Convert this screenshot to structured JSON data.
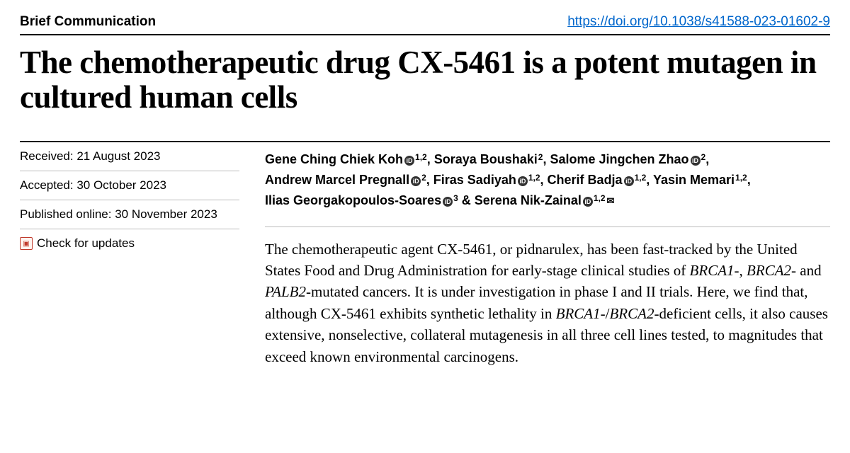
{
  "header": {
    "article_type": "Brief Communication",
    "doi_url": "https://doi.org/10.1038/s41588-023-01602-9"
  },
  "title": "The chemotherapeutic drug CX-5461 is a potent mutagen in cultured human cells",
  "meta": {
    "received": "Received: 21 August 2023",
    "accepted": "Accepted: 30 October 2023",
    "published": "Published online: 30 November 2023",
    "updates": "Check for updates"
  },
  "authors": [
    {
      "name": "Gene Ching Chiek Koh",
      "orcid": true,
      "aff": "1,2",
      "sep": ", "
    },
    {
      "name": "Soraya Boushaki",
      "orcid": false,
      "aff": "2",
      "sep": ", "
    },
    {
      "name": "Salome Jingchen Zhao",
      "orcid": true,
      "aff": "2",
      "sep": ", "
    },
    {
      "name": "Andrew Marcel Pregnall",
      "orcid": true,
      "aff": "2",
      "sep": ", "
    },
    {
      "name": "Firas Sadiyah",
      "orcid": true,
      "aff": "1,2",
      "sep": ", "
    },
    {
      "name": "Cherif Badja",
      "orcid": true,
      "aff": "1,2",
      "sep": ", "
    },
    {
      "name": "Yasin Memari",
      "orcid": false,
      "aff": "1,2",
      "sep": ", "
    },
    {
      "name": "Ilias Georgakopoulos-Soares",
      "orcid": true,
      "aff": "3",
      "sep": " & "
    },
    {
      "name": "Serena Nik-Zainal",
      "orcid": true,
      "aff": "1,2",
      "sep": "",
      "corresponding": true
    }
  ],
  "abstract_html": "The chemotherapeutic agent CX-5461, or pidnarulex, has been fast-tracked by the United States Food and Drug Administration for early-stage clinical studies of <em>BRCA1</em>-, <em>BRCA2</em>- and <em>PALB2</em>-mutated cancers. It is under investigation in phase I and II trials. Here, we find that, although CX-5461 exhibits synthetic lethality in <em>BRCA1</em>-/<em>BRCA2</em>-deficient cells, it also causes extensive, nonselective, collateral mutagenesis in all three cell lines tested, to magnitudes that exceed known environmental carcinogens.",
  "colors": {
    "link": "#0066cc",
    "text": "#000000",
    "rule": "#000000",
    "light_rule": "#bbbbbb"
  }
}
